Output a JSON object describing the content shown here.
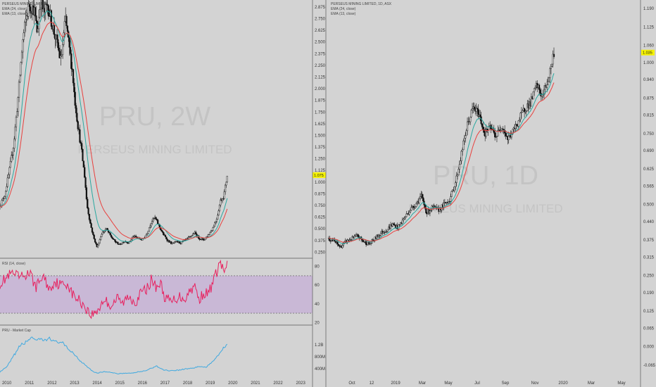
{
  "chart_data": [
    {
      "type": "candlestick",
      "panel": "left-main",
      "legend": [
        "PERSEUS MINING LIMITED",
        "EMA (24, close)",
        "EMA (13, close)"
      ],
      "watermark": {
        "symbol": "PRU, 2W",
        "name": "PERSEUS MINING LIMITED"
      },
      "y_ticks": [
        "2.875",
        "2.750",
        "2.625",
        "2.500",
        "2.375",
        "2.250",
        "2.125",
        "2.000",
        "1.875",
        "1.750",
        "1.625",
        "1.500",
        "1.375",
        "1.250",
        "1.125",
        "1.000",
        "0.875",
        "0.750",
        "0.625",
        "0.500",
        "0.375",
        "0.250"
      ],
      "ylim": [
        0.2,
        2.95
      ],
      "x_ticks": [
        "2010",
        "2011",
        "2012",
        "2013",
        "2014",
        "2015",
        "2016",
        "2017",
        "2018",
        "2019",
        "2020",
        "2021",
        "2022",
        "2023"
      ],
      "xlim": [
        2009.7,
        2023.4
      ],
      "last_price": 1.075,
      "price_path": [
        [
          2009.7,
          0.75
        ],
        [
          2009.9,
          0.85
        ],
        [
          2010.1,
          1.1
        ],
        [
          2010.3,
          1.4
        ],
        [
          2010.5,
          1.9
        ],
        [
          2010.7,
          2.5
        ],
        [
          2010.85,
          2.75
        ],
        [
          2011.0,
          2.9
        ],
        [
          2011.2,
          2.85
        ],
        [
          2011.35,
          2.6
        ],
        [
          2011.5,
          2.95
        ],
        [
          2011.65,
          2.8
        ],
        [
          2011.8,
          2.9
        ],
        [
          2012.0,
          2.7
        ],
        [
          2012.2,
          2.5
        ],
        [
          2012.4,
          2.3
        ],
        [
          2012.6,
          2.75
        ],
        [
          2012.75,
          2.45
        ],
        [
          2012.9,
          2.2
        ],
        [
          2013.0,
          1.9
        ],
        [
          2013.15,
          1.6
        ],
        [
          2013.3,
          1.35
        ],
        [
          2013.45,
          1.05
        ],
        [
          2013.55,
          0.75
        ],
        [
          2013.7,
          0.55
        ],
        [
          2013.85,
          0.4
        ],
        [
          2014.0,
          0.3
        ],
        [
          2014.2,
          0.45
        ],
        [
          2014.4,
          0.5
        ],
        [
          2014.6,
          0.42
        ],
        [
          2014.8,
          0.36
        ],
        [
          2015.0,
          0.33
        ],
        [
          2015.2,
          0.37
        ],
        [
          2015.4,
          0.35
        ],
        [
          2015.6,
          0.42
        ],
        [
          2015.8,
          0.4
        ],
        [
          2016.0,
          0.38
        ],
        [
          2016.2,
          0.45
        ],
        [
          2016.4,
          0.58
        ],
        [
          2016.55,
          0.62
        ],
        [
          2016.7,
          0.55
        ],
        [
          2016.9,
          0.45
        ],
        [
          2017.1,
          0.38
        ],
        [
          2017.3,
          0.34
        ],
        [
          2017.5,
          0.36
        ],
        [
          2017.7,
          0.35
        ],
        [
          2017.9,
          0.38
        ],
        [
          2018.1,
          0.41
        ],
        [
          2018.3,
          0.46
        ],
        [
          2018.5,
          0.4
        ],
        [
          2018.7,
          0.38
        ],
        [
          2018.9,
          0.43
        ],
        [
          2019.1,
          0.5
        ],
        [
          2019.3,
          0.62
        ],
        [
          2019.45,
          0.8
        ],
        [
          2019.6,
          0.85
        ],
        [
          2019.7,
          1.0
        ],
        [
          2019.75,
          1.075
        ]
      ]
    },
    {
      "type": "line",
      "panel": "left-rsi",
      "legend": [
        "RSI (14, close)"
      ],
      "y_ticks": [
        "80",
        "60",
        "40",
        "20"
      ],
      "ylim": [
        18,
        88
      ],
      "band": [
        30,
        70
      ],
      "x": [
        2009.7,
        2010.2,
        2010.6,
        2011.0,
        2011.3,
        2011.6,
        2011.9,
        2012.1,
        2012.4,
        2012.7,
        2012.9,
        2013.2,
        2013.5,
        2013.7,
        2013.9,
        2014.1,
        2014.3,
        2014.6,
        2014.9,
        2015.1,
        2015.4,
        2015.7,
        2015.95,
        2016.2,
        2016.4,
        2016.6,
        2016.8,
        2017.0,
        2017.3,
        2017.6,
        2017.9,
        2018.1,
        2018.3,
        2018.5,
        2018.7,
        2018.9,
        2019.1,
        2019.3,
        2019.45,
        2019.6,
        2019.75
      ],
      "values": [
        62,
        72,
        68,
        73,
        58,
        70,
        55,
        64,
        60,
        62,
        50,
        44,
        36,
        28,
        30,
        36,
        45,
        38,
        46,
        40,
        48,
        42,
        52,
        56,
        66,
        58,
        62,
        46,
        42,
        48,
        46,
        54,
        60,
        44,
        52,
        50,
        62,
        75,
        86,
        72,
        84
      ]
    },
    {
      "type": "line",
      "panel": "left-mcap",
      "legend": [
        "PRU - Market Cap"
      ],
      "y_ticks": [
        "1.2B",
        "800M",
        "400M"
      ],
      "ylim": [
        150,
        1800
      ],
      "unit": "M",
      "x": [
        2009.7,
        2010.0,
        2010.3,
        2010.6,
        2010.9,
        2011.1,
        2011.3,
        2011.5,
        2011.7,
        2011.9,
        2012.1,
        2012.4,
        2012.7,
        2012.9,
        2013.2,
        2013.5,
        2013.8,
        2014.0,
        2014.3,
        2014.6,
        2014.9,
        2015.2,
        2015.5,
        2015.8,
        2016.1,
        2016.4,
        2016.6,
        2016.9,
        2017.2,
        2017.6,
        2017.9,
        2018.2,
        2018.5,
        2018.8,
        2019.0,
        2019.3,
        2019.5,
        2019.75
      ],
      "values": [
        300,
        460,
        820,
        1180,
        1300,
        1480,
        1300,
        1380,
        1320,
        1440,
        1280,
        1300,
        1060,
        960,
        700,
        520,
        320,
        260,
        310,
        280,
        240,
        260,
        250,
        300,
        330,
        420,
        500,
        380,
        340,
        360,
        400,
        420,
        480,
        450,
        560,
        820,
        1000,
        1250
      ]
    },
    {
      "type": "candlestick",
      "panel": "right-main",
      "legend": [
        "PERSEUS MINING LIMITED, 1D, ASX",
        "EMA (24, close)",
        "EMA (13, close)"
      ],
      "watermark": {
        "symbol": "PRU, 1D",
        "name": "PERSEUS MINING LIMITED"
      },
      "y_ticks": [
        "1.190",
        "1.125",
        "1.060",
        "1.000",
        "0.940",
        "0.875",
        "0.815",
        "0.750",
        "0.690",
        "0.625",
        "0.565",
        "0.500",
        "0.440",
        "0.375",
        "0.315",
        "0.250",
        "0.190",
        "0.125",
        "0.065",
        "0.000",
        "-0.065"
      ],
      "ylim": [
        -0.11,
        1.22
      ],
      "x_ticks": [
        "Oct",
        "12",
        "2019",
        "Mar",
        "May",
        "Jul",
        "Sep",
        "Nov",
        "2020",
        "Mar",
        "May"
      ],
      "last_price": 1.035,
      "price_path": [
        [
          0,
          0.38
        ],
        [
          1,
          0.37
        ],
        [
          2,
          0.35
        ],
        [
          3,
          0.37
        ],
        [
          4,
          0.38
        ],
        [
          5,
          0.39
        ],
        [
          6,
          0.37
        ],
        [
          7,
          0.36
        ],
        [
          8,
          0.38
        ],
        [
          9,
          0.4
        ],
        [
          10,
          0.41
        ],
        [
          11,
          0.43
        ],
        [
          12,
          0.42
        ],
        [
          13,
          0.45
        ],
        [
          14,
          0.48
        ],
        [
          15,
          0.5
        ],
        [
          16,
          0.53
        ],
        [
          17,
          0.47
        ],
        [
          18,
          0.49
        ],
        [
          19,
          0.48
        ],
        [
          20,
          0.5
        ],
        [
          21,
          0.52
        ],
        [
          22,
          0.58
        ],
        [
          23,
          0.68
        ],
        [
          24,
          0.78
        ],
        [
          25,
          0.84
        ],
        [
          26,
          0.82
        ],
        [
          27,
          0.75
        ],
        [
          28,
          0.77
        ],
        [
          29,
          0.74
        ],
        [
          30,
          0.78
        ],
        [
          31,
          0.73
        ],
        [
          32,
          0.76
        ],
        [
          33,
          0.8
        ],
        [
          34,
          0.84
        ],
        [
          35,
          0.86
        ],
        [
          36,
          0.92
        ],
        [
          37,
          0.88
        ],
        [
          38,
          0.94
        ],
        [
          39,
          1.035
        ]
      ]
    }
  ]
}
